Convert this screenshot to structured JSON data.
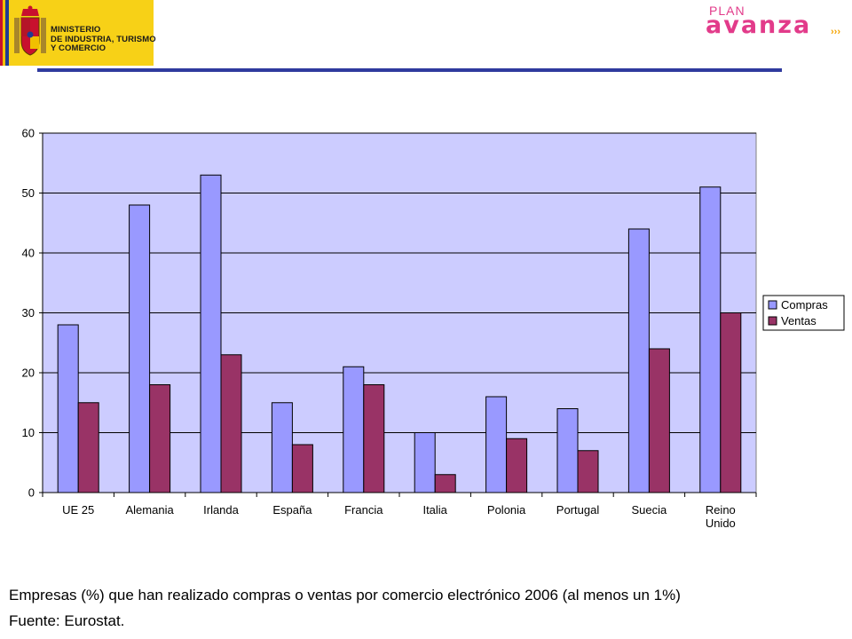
{
  "header": {
    "ministry_lines": [
      "MINISTERIO",
      "DE INDUSTRIA, TURISMO",
      "Y COMERCIO"
    ],
    "plan_word": "PLAN",
    "avanza_word": "avanza",
    "avanza_suffix": "›››"
  },
  "caption": {
    "main": "Empresas (%) que han realizado compras o ventas por comercio electrónico 2006 (al menos un 1%)",
    "source": "Fuente: Eurostat."
  },
  "colors": {
    "plot_bg": "#ccccff",
    "compras": "#9999ff",
    "ventas": "#993366",
    "header_rule": "#2f3a9e",
    "logo_yellow": "#f7d117",
    "logo_pink": "#e23b8a"
  },
  "chart_data": {
    "type": "bar",
    "categories": [
      "UE 25",
      "Alemania",
      "Irlanda",
      "España",
      "Francia",
      "Italia",
      "Polonia",
      "Portugal",
      "Suecia",
      "Reino Unido"
    ],
    "series": [
      {
        "name": "Compras",
        "values": [
          28,
          48,
          53,
          15,
          21,
          10,
          16,
          14,
          44,
          51
        ]
      },
      {
        "name": "Ventas",
        "values": [
          15,
          18,
          23,
          8,
          18,
          3,
          9,
          7,
          24,
          30
        ]
      }
    ],
    "ylim": [
      0,
      60
    ],
    "yticks": [
      0,
      10,
      20,
      30,
      40,
      50,
      60
    ],
    "grid": true,
    "legend_position": "right"
  }
}
